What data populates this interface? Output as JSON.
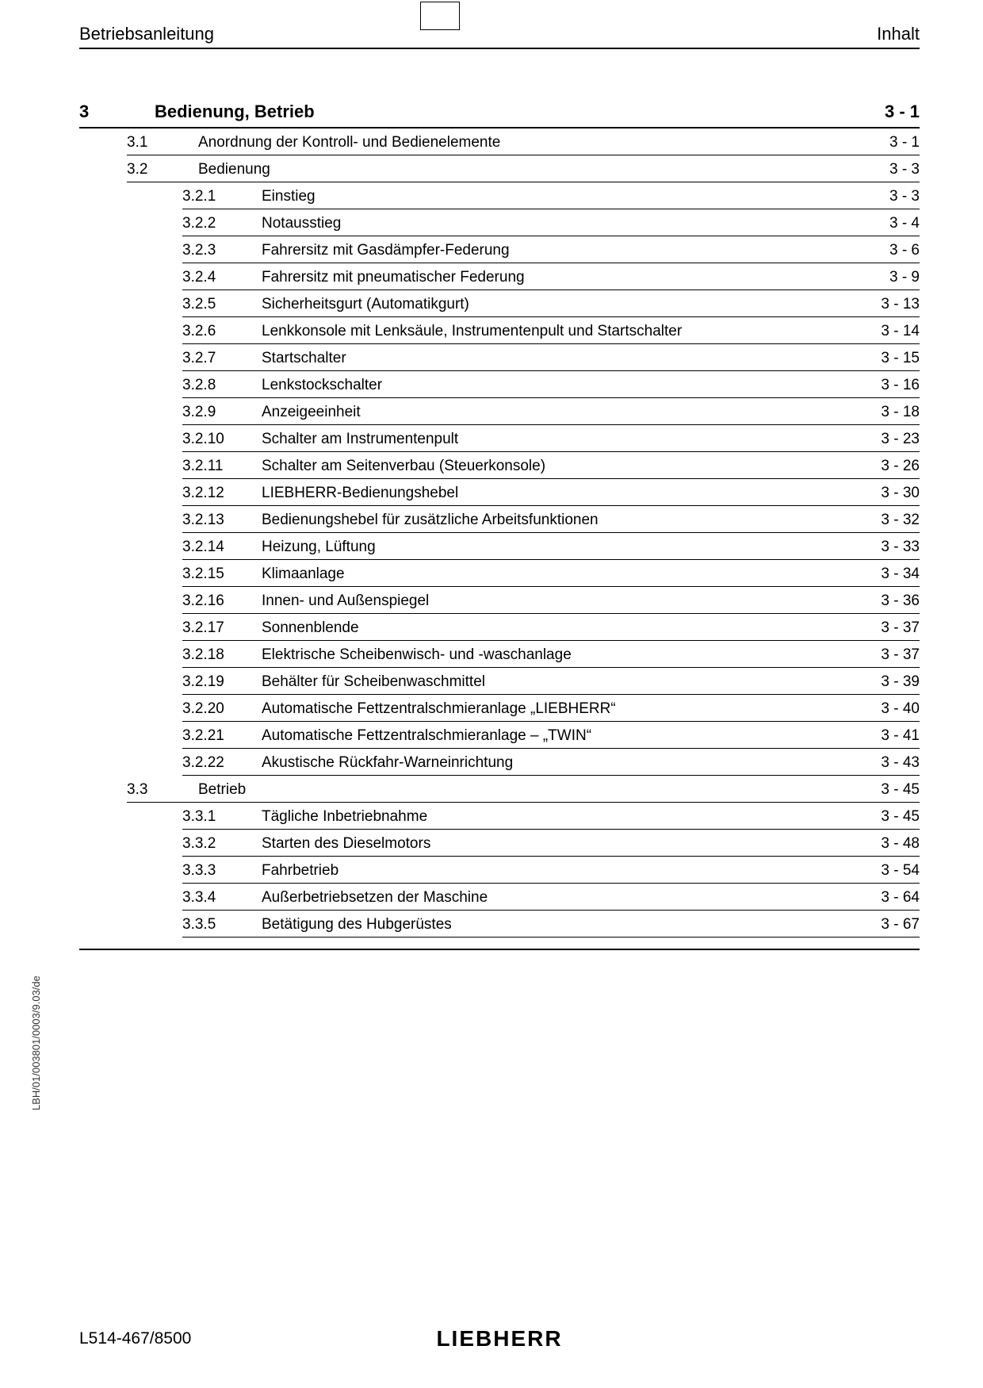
{
  "header": {
    "left": "Betriebsanleitung",
    "right": "Inhalt"
  },
  "side_text": "LBH/01/003801/0003/9.03/de",
  "footer": {
    "left": "L514-467/8500",
    "logo": "LIEBHERR"
  },
  "toc": [
    {
      "level": 0,
      "num": "3",
      "title": "Bedienung, Betrieb",
      "page": "3 - 1",
      "chapter": true
    },
    {
      "level": 1,
      "num": "3.1",
      "title": "Anordnung der Kontroll- und Bedienelemente",
      "page": "3 - 1"
    },
    {
      "level": 1,
      "num": "3.2",
      "title": "Bedienung",
      "page": "3 - 3"
    },
    {
      "level": 2,
      "num": "3.2.1",
      "title": "Einstieg",
      "page": "3 - 3"
    },
    {
      "level": 2,
      "num": "3.2.2",
      "title": "Notausstieg",
      "page": "3 - 4"
    },
    {
      "level": 2,
      "num": "3.2.3",
      "title": "Fahrersitz mit Gasdämpfer-Federung",
      "page": "3 - 6"
    },
    {
      "level": 2,
      "num": "3.2.4",
      "title": "Fahrersitz mit pneumatischer Federung",
      "page": "3 - 9"
    },
    {
      "level": 2,
      "num": "3.2.5",
      "title": "Sicherheitsgurt (Automatikgurt)",
      "page": "3 - 13"
    },
    {
      "level": 2,
      "num": "3.2.6",
      "title": "Lenkkonsole mit Lenksäule, Instrumentenpult und Startschalter",
      "page": "3 - 14"
    },
    {
      "level": 2,
      "num": "3.2.7",
      "title": "Startschalter",
      "page": "3 - 15"
    },
    {
      "level": 2,
      "num": "3.2.8",
      "title": "Lenkstockschalter",
      "page": "3 - 16"
    },
    {
      "level": 2,
      "num": "3.2.9",
      "title": "Anzeigeeinheit",
      "page": "3 - 18"
    },
    {
      "level": 2,
      "num": "3.2.10",
      "title": "Schalter am Instrumentenpult",
      "page": "3 - 23"
    },
    {
      "level": 2,
      "num": "3.2.11",
      "title": "Schalter am Seitenverbau (Steuerkonsole)",
      "page": "3 - 26"
    },
    {
      "level": 2,
      "num": "3.2.12",
      "title": "LIEBHERR-Bedienungshebel",
      "page": "3 - 30"
    },
    {
      "level": 2,
      "num": "3.2.13",
      "title": "Bedienungshebel für zusätzliche Arbeitsfunktionen",
      "page": "3 - 32"
    },
    {
      "level": 2,
      "num": "3.2.14",
      "title": "Heizung, Lüftung",
      "page": "3 - 33"
    },
    {
      "level": 2,
      "num": "3.2.15",
      "title": "Klimaanlage",
      "page": "3 - 34"
    },
    {
      "level": 2,
      "num": "3.2.16",
      "title": "Innen- und Außenspiegel",
      "page": "3 - 36"
    },
    {
      "level": 2,
      "num": "3.2.17",
      "title": "Sonnenblende",
      "page": "3 - 37"
    },
    {
      "level": 2,
      "num": "3.2.18",
      "title": "Elektrische Scheibenwisch- und -waschanlage",
      "page": "3 - 37"
    },
    {
      "level": 2,
      "num": "3.2.19",
      "title": "Behälter für Scheibenwaschmittel",
      "page": "3 - 39"
    },
    {
      "level": 2,
      "num": "3.2.20",
      "title": "Automatische Fettzentralschmieranlage „LIEBHERR“",
      "page": "3 - 40"
    },
    {
      "level": 2,
      "num": "3.2.21",
      "title": "Automatische Fettzentralschmieranlage – „TWIN“",
      "page": "3 - 41"
    },
    {
      "level": 2,
      "num": "3.2.22",
      "title": "Akustische Rückfahr-Warneinrichtung",
      "page": "3 - 43"
    },
    {
      "level": 1,
      "num": "3.3",
      "title": "Betrieb",
      "page": "3 - 45"
    },
    {
      "level": 2,
      "num": "3.3.1",
      "title": "Tägliche Inbetriebnahme",
      "page": "3 - 45"
    },
    {
      "level": 2,
      "num": "3.3.2",
      "title": "Starten des Dieselmotors",
      "page": "3 - 48"
    },
    {
      "level": 2,
      "num": "3.3.3",
      "title": "Fahrbetrieb",
      "page": "3 - 54"
    },
    {
      "level": 2,
      "num": "3.3.4",
      "title": "Außerbetriebsetzen der Maschine",
      "page": "3 - 64"
    },
    {
      "level": 2,
      "num": "3.3.5",
      "title": "Betätigung des Hubgerüstes",
      "page": "3 - 67"
    }
  ]
}
